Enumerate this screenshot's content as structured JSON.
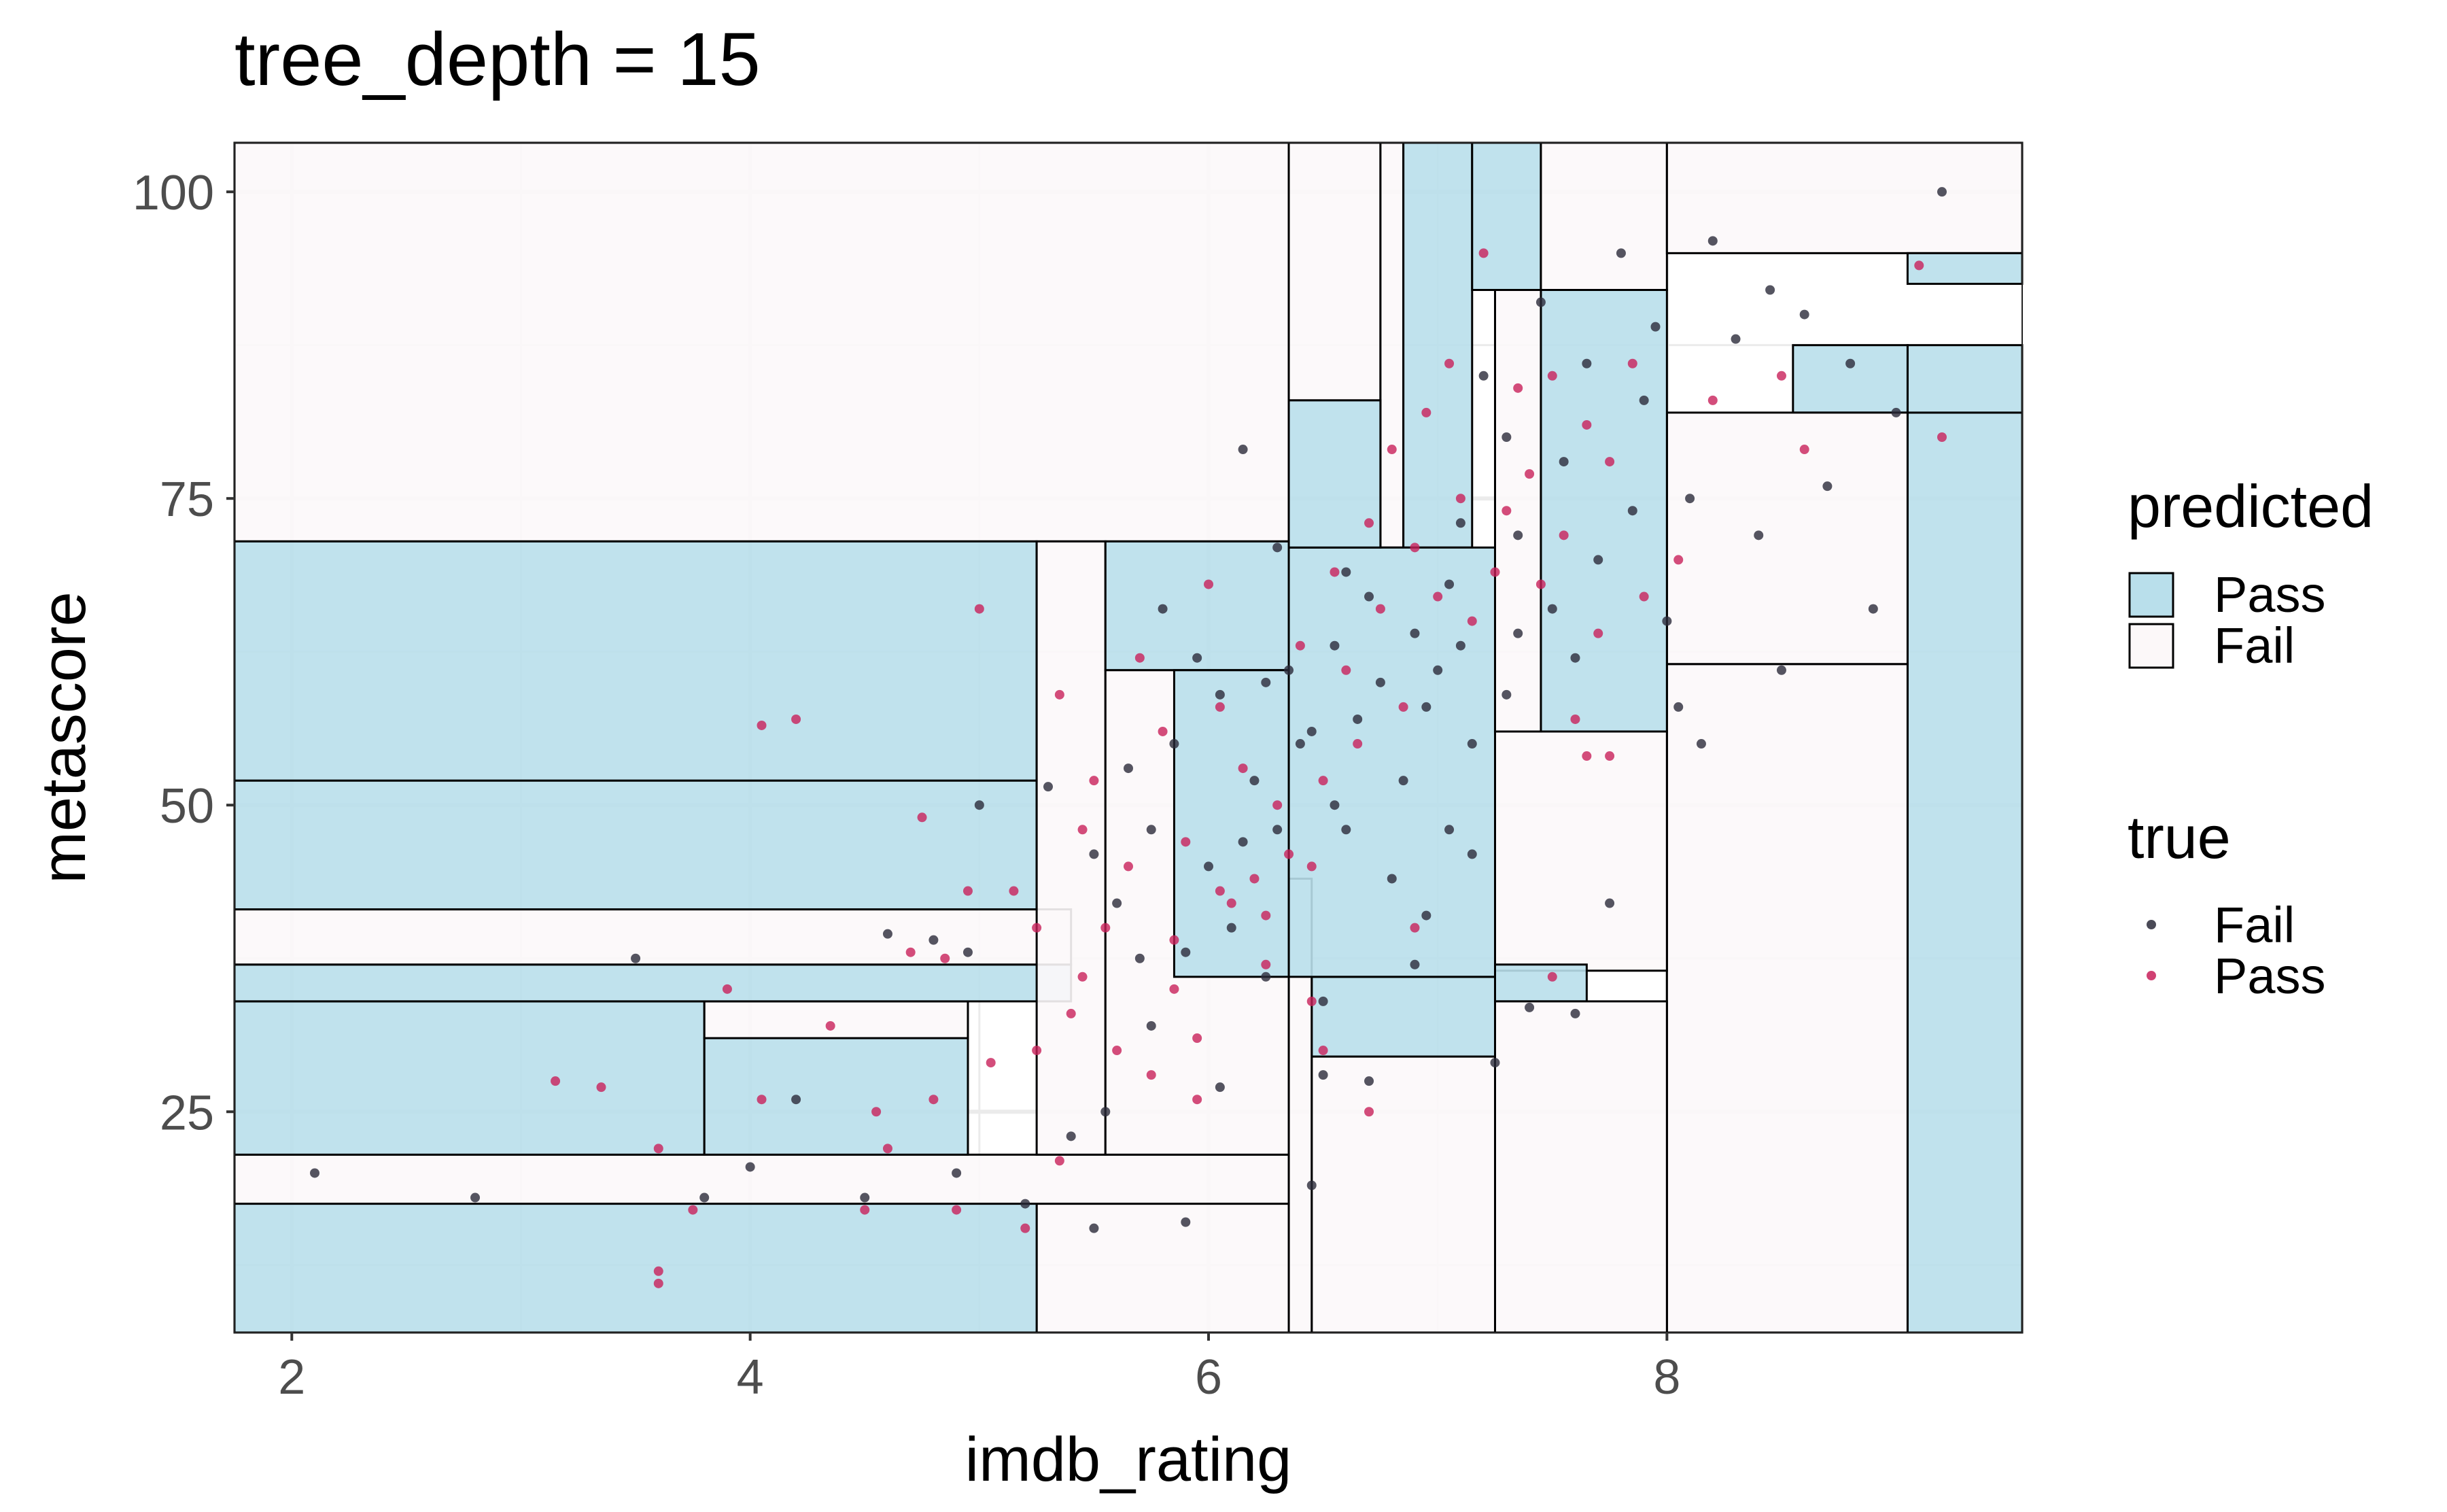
{
  "chart_data": {
    "type": "scatter",
    "title": "tree_depth = 15",
    "xlabel": "imdb_rating",
    "ylabel": "metascore",
    "xlim": [
      1.75,
      9.55
    ],
    "ylim": [
      7,
      104
    ],
    "x_ticks": [
      2,
      4,
      6,
      8
    ],
    "y_ticks": [
      25,
      50,
      75,
      100
    ],
    "grid": true,
    "legend_position": "right",
    "colors": {
      "pass_fill": "#b9dfeb",
      "fail_fill": "#fcf8f9",
      "rect_stroke": "#000000",
      "point_fail": "#2a2a3a",
      "point_pass": "#c8205a",
      "grid": "#ebebeb"
    },
    "legends": [
      {
        "title": "predicted",
        "kind": "fill",
        "items": [
          {
            "label": "Pass",
            "key": "pass"
          },
          {
            "label": "Fail",
            "key": "fail"
          }
        ]
      },
      {
        "title": "true",
        "kind": "point",
        "items": [
          {
            "label": "Fail",
            "key": "fail"
          },
          {
            "label": "Pass",
            "key": "pass"
          }
        ]
      }
    ],
    "regions": [
      {
        "x0": 1.75,
        "x1": 6.35,
        "y0": 71.5,
        "y1": 104,
        "predicted": "fail"
      },
      {
        "x0": 6.35,
        "x1": 6.75,
        "y0": 83,
        "y1": 104,
        "predicted": "fail"
      },
      {
        "x0": 6.75,
        "x1": 6.85,
        "y0": 71,
        "y1": 104,
        "predicted": "fail"
      },
      {
        "x0": 6.85,
        "x1": 7.15,
        "y0": 71,
        "y1": 104,
        "predicted": "pass"
      },
      {
        "x0": 7.15,
        "x1": 7.45,
        "y0": 92,
        "y1": 104,
        "predicted": "pass"
      },
      {
        "x0": 7.45,
        "x1": 8.0,
        "y0": 92,
        "y1": 104,
        "predicted": "fail"
      },
      {
        "x0": 8.0,
        "x1": 9.55,
        "y0": 95,
        "y1": 104,
        "predicted": "fail"
      },
      {
        "x0": 9.05,
        "x1": 9.55,
        "y0": 92.5,
        "y1": 95,
        "predicted": "pass"
      },
      {
        "x0": 9.05,
        "x1": 9.55,
        "y0": 7,
        "y1": 82,
        "predicted": "pass"
      },
      {
        "x0": 9.05,
        "x1": 9.55,
        "y0": 82,
        "y1": 87.5,
        "predicted": "pass"
      },
      {
        "x0": 8.55,
        "x1": 9.05,
        "y0": 82,
        "y1": 87.5,
        "predicted": "pass"
      },
      {
        "x0": 8.0,
        "x1": 9.05,
        "y0": 7,
        "y1": 61.5,
        "predicted": "fail"
      },
      {
        "x0": 8.0,
        "x1": 9.05,
        "y0": 61.5,
        "y1": 82,
        "predicted": "fail"
      },
      {
        "x0": 7.45,
        "x1": 8.0,
        "y0": 56,
        "y1": 92,
        "predicted": "pass"
      },
      {
        "x0": 7.25,
        "x1": 8.0,
        "y0": 36.5,
        "y1": 56,
        "predicted": "fail"
      },
      {
        "x0": 7.25,
        "x1": 7.65,
        "y0": 34,
        "y1": 37,
        "predicted": "pass"
      },
      {
        "x0": 7.25,
        "x1": 8.0,
        "y0": 7,
        "y1": 34,
        "predicted": "fail"
      },
      {
        "x0": 6.45,
        "x1": 7.25,
        "y0": 7,
        "y1": 29.5,
        "predicted": "fail"
      },
      {
        "x0": 6.45,
        "x1": 7.25,
        "y0": 29.5,
        "y1": 36,
        "predicted": "pass"
      },
      {
        "x0": 6.35,
        "x1": 6.45,
        "y0": 7,
        "y1": 44,
        "predicted": "fail"
      },
      {
        "x0": 6.35,
        "x1": 7.25,
        "y0": 36,
        "y1": 71,
        "predicted": "pass"
      },
      {
        "x0": 7.25,
        "x1": 7.45,
        "y0": 56,
        "y1": 92,
        "predicted": "fail"
      },
      {
        "x0": 6.35,
        "x1": 6.75,
        "y0": 71,
        "y1": 83,
        "predicted": "pass"
      },
      {
        "x0": 5.25,
        "x1": 6.35,
        "y0": 7,
        "y1": 17.5,
        "predicted": "fail"
      },
      {
        "x0": 1.75,
        "x1": 5.25,
        "y0": 7,
        "y1": 17.5,
        "predicted": "pass"
      },
      {
        "x0": 1.75,
        "x1": 6.35,
        "y0": 17.5,
        "y1": 21.5,
        "predicted": "fail"
      },
      {
        "x0": 1.75,
        "x1": 3.8,
        "y0": 21.5,
        "y1": 34,
        "predicted": "pass"
      },
      {
        "x0": 3.8,
        "x1": 4.95,
        "y0": 21.5,
        "y1": 31,
        "predicted": "pass"
      },
      {
        "x0": 3.8,
        "x1": 4.95,
        "y0": 31,
        "y1": 34,
        "predicted": "fail"
      },
      {
        "x0": 1.75,
        "x1": 5.4,
        "y0": 34,
        "y1": 37,
        "predicted": "pass"
      },
      {
        "x0": 1.75,
        "x1": 5.4,
        "y0": 37,
        "y1": 41.5,
        "predicted": "fail"
      },
      {
        "x0": 1.75,
        "x1": 5.25,
        "y0": 41.5,
        "y1": 52,
        "predicted": "pass"
      },
      {
        "x0": 1.75,
        "x1": 5.25,
        "y0": 52,
        "y1": 71.5,
        "predicted": "pass"
      },
      {
        "x0": 5.25,
        "x1": 5.55,
        "y0": 21.5,
        "y1": 71.5,
        "predicted": "fail"
      },
      {
        "x0": 5.55,
        "x1": 6.35,
        "y0": 61,
        "y1": 71.5,
        "predicted": "pass"
      },
      {
        "x0": 5.55,
        "x1": 6.35,
        "y0": 21.5,
        "y1": 61,
        "predicted": "fail"
      },
      {
        "x0": 5.85,
        "x1": 6.35,
        "y0": 36,
        "y1": 61,
        "predicted": "pass"
      }
    ],
    "points_fail": [
      [
        2.1,
        20
      ],
      [
        2.8,
        18
      ],
      [
        3.5,
        37.5
      ],
      [
        4.0,
        20.5
      ],
      [
        4.2,
        26
      ],
      [
        4.5,
        18
      ],
      [
        4.8,
        39
      ],
      [
        4.95,
        38
      ],
      [
        5.0,
        50
      ],
      [
        5.3,
        51.5
      ],
      [
        5.4,
        23
      ],
      [
        5.5,
        46
      ],
      [
        5.55,
        25
      ],
      [
        5.6,
        42
      ],
      [
        5.7,
        37.5
      ],
      [
        5.75,
        32
      ],
      [
        5.8,
        66
      ],
      [
        5.85,
        55
      ],
      [
        5.9,
        38
      ],
      [
        5.95,
        62
      ],
      [
        6.0,
        45
      ],
      [
        6.05,
        59
      ],
      [
        6.1,
        40
      ],
      [
        6.15,
        79
      ],
      [
        6.2,
        52
      ],
      [
        6.25,
        36
      ],
      [
        6.3,
        48
      ],
      [
        6.35,
        61
      ],
      [
        6.4,
        55
      ],
      [
        6.45,
        19
      ],
      [
        6.5,
        28
      ],
      [
        6.55,
        63
      ],
      [
        6.6,
        48
      ],
      [
        6.65,
        57
      ],
      [
        6.7,
        67
      ],
      [
        6.75,
        60
      ],
      [
        6.8,
        44
      ],
      [
        6.85,
        52
      ],
      [
        6.9,
        64
      ],
      [
        6.95,
        58
      ],
      [
        7.0,
        61
      ],
      [
        7.05,
        48
      ],
      [
        7.1,
        63
      ],
      [
        7.15,
        55
      ],
      [
        7.2,
        85
      ],
      [
        7.25,
        29
      ],
      [
        7.3,
        80
      ],
      [
        7.35,
        72
      ],
      [
        7.4,
        33.5
      ],
      [
        7.45,
        91
      ],
      [
        7.5,
        66
      ],
      [
        7.55,
        78
      ],
      [
        7.6,
        62
      ],
      [
        7.65,
        86
      ],
      [
        7.7,
        70
      ],
      [
        7.75,
        42
      ],
      [
        7.8,
        95
      ],
      [
        7.85,
        74
      ],
      [
        7.9,
        83
      ],
      [
        7.95,
        89
      ],
      [
        8.0,
        65
      ],
      [
        8.1,
        75
      ],
      [
        8.15,
        55
      ],
      [
        8.2,
        96
      ],
      [
        8.3,
        88
      ],
      [
        8.4,
        72
      ],
      [
        8.45,
        92
      ],
      [
        8.5,
        61
      ],
      [
        8.6,
        90
      ],
      [
        8.7,
        76
      ],
      [
        8.8,
        86
      ],
      [
        8.9,
        66
      ],
      [
        9.0,
        82
      ],
      [
        9.2,
        100
      ],
      [
        6.3,
        71
      ],
      [
        6.6,
        69
      ],
      [
        7.1,
        73
      ],
      [
        7.3,
        59
      ],
      [
        6.9,
        37
      ],
      [
        6.7,
        27.5
      ],
      [
        6.05,
        27
      ],
      [
        5.9,
        16
      ],
      [
        5.5,
        15.5
      ],
      [
        5.2,
        17.5
      ],
      [
        4.9,
        20
      ],
      [
        4.6,
        39.5
      ],
      [
        3.8,
        18
      ],
      [
        6.5,
        34
      ],
      [
        6.95,
        41
      ],
      [
        7.15,
        46
      ],
      [
        7.6,
        33
      ],
      [
        7.05,
        68
      ],
      [
        6.45,
        56
      ],
      [
        6.55,
        50
      ],
      [
        7.35,
        64
      ],
      [
        6.15,
        47
      ],
      [
        5.65,
        53
      ],
      [
        5.75,
        48
      ],
      [
        6.25,
        60
      ],
      [
        8.05,
        58
      ]
    ],
    "points_pass": [
      [
        3.15,
        27.5
      ],
      [
        3.35,
        27
      ],
      [
        3.6,
        22
      ],
      [
        3.6,
        11
      ],
      [
        3.6,
        12
      ],
      [
        3.75,
        17
      ],
      [
        3.9,
        35
      ],
      [
        4.05,
        26
      ],
      [
        4.05,
        56.5
      ],
      [
        4.2,
        57
      ],
      [
        4.35,
        32
      ],
      [
        4.5,
        17
      ],
      [
        4.55,
        25
      ],
      [
        4.6,
        22
      ],
      [
        4.7,
        38
      ],
      [
        4.75,
        49
      ],
      [
        4.8,
        26
      ],
      [
        4.85,
        37.5
      ],
      [
        4.9,
        17
      ],
      [
        4.95,
        43
      ],
      [
        5.0,
        66
      ],
      [
        5.05,
        29
      ],
      [
        5.15,
        43
      ],
      [
        5.2,
        15.5
      ],
      [
        5.25,
        40
      ],
      [
        5.35,
        59
      ],
      [
        5.4,
        33
      ],
      [
        5.45,
        48
      ],
      [
        5.5,
        52
      ],
      [
        5.55,
        40
      ],
      [
        5.6,
        30
      ],
      [
        5.65,
        45
      ],
      [
        5.7,
        62
      ],
      [
        5.75,
        28
      ],
      [
        5.8,
        56
      ],
      [
        5.85,
        35
      ],
      [
        5.9,
        47
      ],
      [
        5.95,
        31
      ],
      [
        6.0,
        68
      ],
      [
        6.05,
        58
      ],
      [
        6.1,
        42
      ],
      [
        6.15,
        53
      ],
      [
        6.2,
        44
      ],
      [
        6.25,
        37
      ],
      [
        6.3,
        50
      ],
      [
        6.35,
        46
      ],
      [
        6.4,
        63
      ],
      [
        6.45,
        45
      ],
      [
        6.5,
        52
      ],
      [
        6.55,
        69
      ],
      [
        6.6,
        61
      ],
      [
        6.65,
        55
      ],
      [
        6.7,
        73
      ],
      [
        6.75,
        66
      ],
      [
        6.8,
        79
      ],
      [
        6.85,
        58
      ],
      [
        6.9,
        71
      ],
      [
        6.95,
        82
      ],
      [
        7.0,
        67
      ],
      [
        7.05,
        86
      ],
      [
        7.1,
        75
      ],
      [
        7.15,
        65
      ],
      [
        7.2,
        95
      ],
      [
        7.25,
        69
      ],
      [
        7.3,
        74
      ],
      [
        7.35,
        84
      ],
      [
        7.4,
        77
      ],
      [
        7.45,
        68
      ],
      [
        7.5,
        85
      ],
      [
        7.55,
        72
      ],
      [
        7.6,
        57
      ],
      [
        7.65,
        81
      ],
      [
        7.7,
        64
      ],
      [
        7.75,
        78
      ],
      [
        7.85,
        86
      ],
      [
        7.9,
        67
      ],
      [
        8.05,
        70
      ],
      [
        8.2,
        83
      ],
      [
        8.5,
        85
      ],
      [
        8.6,
        79
      ],
      [
        9.1,
        94
      ],
      [
        9.2,
        80
      ],
      [
        6.45,
        34
      ],
      [
        6.5,
        30
      ],
      [
        6.7,
        25
      ],
      [
        6.9,
        40
      ],
      [
        7.5,
        36
      ],
      [
        7.65,
        54
      ],
      [
        7.75,
        54
      ],
      [
        6.05,
        43
      ],
      [
        5.85,
        39
      ],
      [
        5.95,
        26
      ],
      [
        6.25,
        41
      ],
      [
        5.35,
        21
      ],
      [
        5.45,
        36
      ],
      [
        5.25,
        30
      ]
    ]
  }
}
